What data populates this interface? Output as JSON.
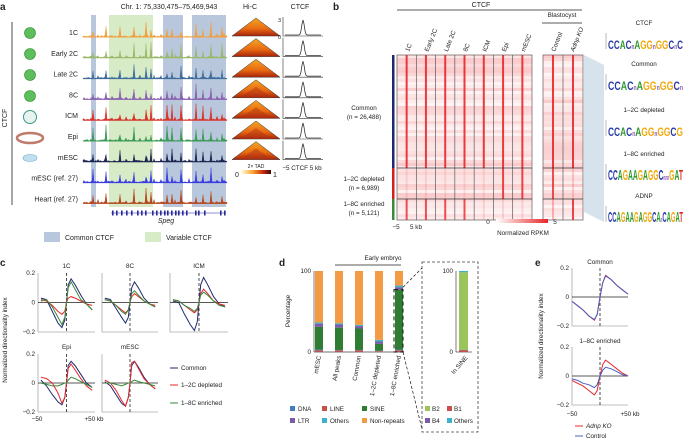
{
  "panel_labels": {
    "a": "a",
    "b": "b",
    "c": "c",
    "d": "d",
    "e": "e"
  },
  "colors": {
    "common_shade": "#b9c7dc",
    "variable_shade": "#d7ebc6",
    "common": "#1f2a6e",
    "depleted": "#e8262a",
    "enriched": "#3a8a3a",
    "heat_max": "#e8262a",
    "adnp_ko": "#e8262a",
    "control": "#4a5fc1"
  },
  "panel_a": {
    "locus": "Chr. 1: 75,330,475–75,469,943",
    "hic_title": "Hi-C",
    "ctcf_title": "CTCF",
    "side_label": "CTCF",
    "tracks": [
      {
        "label": "1C",
        "color": "#f0a040"
      },
      {
        "label": "Early 2C",
        "color": "#9bb86a"
      },
      {
        "label": "Late 2C",
        "color": "#3e6d9c"
      },
      {
        "label": "8C",
        "color": "#8a62b0"
      },
      {
        "label": "ICM",
        "color": "#d9342b"
      },
      {
        "label": "Epi",
        "color": "#3b9a55"
      },
      {
        "label": "mESC",
        "color": "#1d2450"
      },
      {
        "label": "mESC (ref. 27)",
        "color": "#3a3ee0"
      },
      {
        "label": "Heart (ref. 27)",
        "color": "#b5461c"
      }
    ],
    "gene": "Speg",
    "tad_label": "2× TAD",
    "hic_scale": {
      "min": "0",
      "max": "1"
    },
    "ctcf_axis": {
      "top": "3",
      "bottom": "0"
    },
    "ctcf_x_label": "−5 CTCF 5 kb",
    "legend": [
      {
        "label": "Common CTCF"
      },
      {
        "label": "Variable CTCF"
      }
    ]
  },
  "panel_b": {
    "header": "CTCF",
    "blastocyst": "Blastocyst",
    "columns": [
      "1C",
      "Early 2C",
      "Late 2C",
      "8C",
      "ICM",
      "Epi",
      "mESC"
    ],
    "blast_columns": [
      "Control",
      "Adnp KO"
    ],
    "groups": [
      {
        "name": "Common",
        "n": "(n = 26,488)"
      },
      {
        "name": "1–2C depleted",
        "n": "(n = 6,989)"
      },
      {
        "name": "1–8C enriched",
        "n": "(n = 5,121)"
      }
    ],
    "x_labels": {
      "left": "−5",
      "right": "5 kb"
    },
    "scale": {
      "min": "0",
      "max": "5",
      "label": "Normalized RPKM"
    },
    "motifs": [
      {
        "title": "CTCF",
        "seq": "CCACnAGGnGGCnC"
      },
      {
        "title": "Common",
        "seq": "CCACnAGGnGGCn"
      },
      {
        "title": "1–2C depleted",
        "seq": "CCACnAGGnGGCG"
      },
      {
        "title": "1–8C enriched",
        "seq": "CCAGAAGAGGCnnnGAT"
      },
      {
        "title": "ADNP",
        "seq": "CCAGAAGAGGCAnCAGAT"
      }
    ]
  },
  "panel_c": {
    "y_label": "Normalized directionality index",
    "legend": [
      "Common",
      "1–2C depleted",
      "1–8C enriched"
    ]
  },
  "panel_e": {
    "y_label": "Normalized directionality index",
    "legend": [
      "Adnp KO",
      "Control"
    ]
  },
  "chart_data": [
    {
      "type": "line",
      "panel": "c",
      "xlabel_left": "−50",
      "xlabel_right": "+50 kb",
      "xlim": [
        -50,
        50
      ],
      "ylim": [
        -0.2,
        0.2
      ],
      "yticks": [
        "0.2",
        "0",
        "−0.2"
      ],
      "x": [
        -45,
        -35,
        -25,
        -15,
        -8,
        -3,
        0,
        3,
        8,
        15,
        25,
        35,
        45
      ],
      "subplots": [
        {
          "title": "1C",
          "series": [
            {
              "name": "Common",
              "values": [
                0.03,
                0.02,
                -0.06,
                -0.14,
                -0.17,
                -0.12,
                0.0,
                0.12,
                0.16,
                0.12,
                0.05,
                -0.01,
                -0.05
              ]
            },
            {
              "name": "1–2C depleted",
              "values": [
                0.02,
                0.01,
                -0.02,
                -0.06,
                -0.08,
                -0.06,
                0.0,
                0.03,
                0.04,
                0.03,
                0.01,
                -0.01,
                -0.02
              ]
            },
            {
              "name": "1–8C enriched",
              "values": [
                0.01,
                0.02,
                -0.03,
                -0.1,
                -0.15,
                -0.1,
                0.0,
                0.1,
                0.14,
                0.09,
                0.02,
                -0.01,
                -0.05
              ]
            }
          ]
        },
        {
          "title": "8C",
          "series": [
            {
              "name": "Common",
              "values": [
                0.03,
                0.02,
                -0.04,
                -0.1,
                -0.14,
                -0.1,
                0.0,
                0.1,
                0.14,
                0.1,
                0.03,
                -0.01,
                -0.03
              ]
            },
            {
              "name": "1–2C depleted",
              "values": [
                0.02,
                0.01,
                -0.02,
                -0.05,
                -0.07,
                -0.05,
                0.0,
                0.04,
                0.06,
                0.04,
                0.01,
                -0.01,
                -0.02
              ]
            },
            {
              "name": "1–8C enriched",
              "values": [
                0.02,
                0.01,
                -0.02,
                -0.06,
                -0.08,
                -0.05,
                0.0,
                0.06,
                0.08,
                0.05,
                0.01,
                -0.01,
                -0.03
              ]
            }
          ]
        },
        {
          "title": "ICM",
          "series": [
            {
              "name": "Common",
              "values": [
                0.01,
                0.0,
                -0.08,
                -0.15,
                -0.19,
                -0.13,
                0.0,
                0.12,
                0.17,
                0.12,
                0.04,
                -0.01,
                -0.03
              ]
            },
            {
              "name": "1–2C depleted",
              "values": [
                0.02,
                0.01,
                -0.02,
                -0.05,
                -0.07,
                -0.05,
                0.0,
                0.06,
                0.09,
                0.06,
                0.01,
                -0.01,
                -0.02
              ]
            },
            {
              "name": "1–8C enriched",
              "values": [
                0.02,
                0.01,
                -0.02,
                -0.04,
                -0.06,
                -0.04,
                0.0,
                0.05,
                0.07,
                0.05,
                0.01,
                -0.02,
                -0.03
              ]
            }
          ]
        },
        {
          "title": "Epi",
          "series": [
            {
              "name": "Common",
              "values": [
                0.02,
                -0.02,
                -0.08,
                -0.13,
                -0.15,
                -0.1,
                0.0,
                0.12,
                0.15,
                0.12,
                0.06,
                0.0,
                -0.03
              ]
            },
            {
              "name": "1–2C depleted",
              "values": [
                0.04,
                0.03,
                0.0,
                -0.07,
                -0.14,
                -0.1,
                0.0,
                0.1,
                0.13,
                0.09,
                0.03,
                -0.02,
                -0.05
              ]
            },
            {
              "name": "1–8C enriched",
              "values": [
                0.0,
                -0.01,
                -0.02,
                -0.02,
                -0.01,
                0.0,
                0.0,
                0.02,
                0.04,
                0.03,
                0.01,
                -0.01,
                -0.03
              ]
            }
          ]
        },
        {
          "title": "mESC",
          "series": [
            {
              "name": "Common",
              "values": [
                0.01,
                -0.02,
                -0.08,
                -0.14,
                -0.16,
                -0.1,
                0.0,
                0.12,
                0.15,
                0.11,
                0.04,
                -0.01,
                -0.04
              ]
            },
            {
              "name": "1–2C depleted",
              "values": [
                0.02,
                0.0,
                -0.05,
                -0.12,
                -0.16,
                -0.1,
                0.0,
                0.14,
                0.15,
                0.1,
                0.03,
                -0.01,
                -0.04
              ]
            },
            {
              "name": "1–8C enriched",
              "values": [
                0.0,
                0.0,
                -0.01,
                -0.02,
                -0.01,
                0.0,
                0.0,
                0.01,
                0.02,
                0.01,
                0.0,
                -0.01,
                -0.02
              ]
            }
          ]
        }
      ]
    },
    {
      "type": "bar",
      "panel": "d",
      "stacked": true,
      "ylabel": "Percentage",
      "ylim": [
        0,
        100
      ],
      "yticks": [
        "100",
        "0"
      ],
      "group_label": "Early embryo",
      "categories": [
        "mESC",
        "All peaks",
        "Common",
        "1–2C depleted",
        "1–8C enriched"
      ],
      "series": [
        {
          "name": "LINE",
          "color": "#c9504a",
          "values": [
            2,
            2,
            2,
            1,
            2
          ]
        },
        {
          "name": "DNA",
          "color": "#3f7fc0",
          "values": [
            1,
            0.5,
            0.5,
            0.5,
            1
          ]
        },
        {
          "name": "SINE",
          "color": "#2e7d32",
          "values": [
            28,
            27.5,
            26.5,
            8.5,
            74
          ]
        },
        {
          "name": "LTR",
          "color": "#7b5aa6",
          "values": [
            4,
            4,
            3,
            3,
            3
          ]
        },
        {
          "name": "Others",
          "color": "#3cb3c9",
          "values": [
            1.5,
            1.5,
            1.5,
            2,
            2
          ]
        },
        {
          "name": "Non-repeats",
          "color": "#f39a45",
          "values": [
            63.5,
            64.5,
            66.5,
            85,
            18
          ]
        }
      ],
      "legend_order": [
        "DNA",
        "LINE",
        "SINE",
        "LTR",
        "Others",
        "Non-repeats"
      ]
    },
    {
      "type": "bar",
      "panel": "d-inset",
      "stacked": true,
      "ylim": [
        0,
        100
      ],
      "yticks": [
        "100",
        "0"
      ],
      "categories": [
        "In SINE"
      ],
      "series": [
        {
          "name": "B1",
          "color": "#c9504a",
          "values": [
            2
          ]
        },
        {
          "name": "B4",
          "color": "#7b5aa6",
          "values": [
            0.5
          ]
        },
        {
          "name": "B2",
          "color": "#9bc45a",
          "values": [
            96
          ]
        },
        {
          "name": "Others",
          "color": "#3cb3c9",
          "values": [
            1.5
          ]
        }
      ],
      "legend_order": [
        "B2",
        "B1",
        "B4",
        "Others"
      ]
    },
    {
      "type": "line",
      "panel": "e",
      "xlabel_left": "−50",
      "xlabel_right": "+50 kb",
      "xlim": [
        -50,
        50
      ],
      "ylim": [
        -0.2,
        0.2
      ],
      "yticks": [
        "0.2",
        "0",
        "−0.2"
      ],
      "x": [
        -50,
        -40,
        -30,
        -20,
        -10,
        -5,
        0,
        5,
        10,
        20,
        30,
        40,
        50
      ],
      "subplots": [
        {
          "title": "Common",
          "series": [
            {
              "name": "Adnp KO",
              "values": [
                -0.03,
                -0.06,
                -0.09,
                -0.13,
                -0.16,
                -0.12,
                0.0,
                0.1,
                0.15,
                0.12,
                0.08,
                0.05,
                0.02
              ]
            },
            {
              "name": "Control",
              "values": [
                -0.03,
                -0.06,
                -0.09,
                -0.13,
                -0.155,
                -0.12,
                0.0,
                0.1,
                0.145,
                0.12,
                0.08,
                0.05,
                0.02
              ]
            }
          ]
        },
        {
          "title": "1–8C enriched",
          "series": [
            {
              "name": "Adnp KO",
              "values": [
                -0.03,
                -0.05,
                -0.07,
                -0.1,
                -0.13,
                -0.1,
                0.0,
                0.08,
                0.11,
                0.08,
                0.05,
                0.02,
                0.0
              ]
            },
            {
              "name": "Control",
              "values": [
                -0.02,
                -0.03,
                -0.05,
                -0.06,
                -0.08,
                -0.06,
                0.0,
                0.04,
                0.06,
                0.05,
                0.03,
                0.01,
                0.0
              ]
            }
          ]
        }
      ]
    }
  ]
}
